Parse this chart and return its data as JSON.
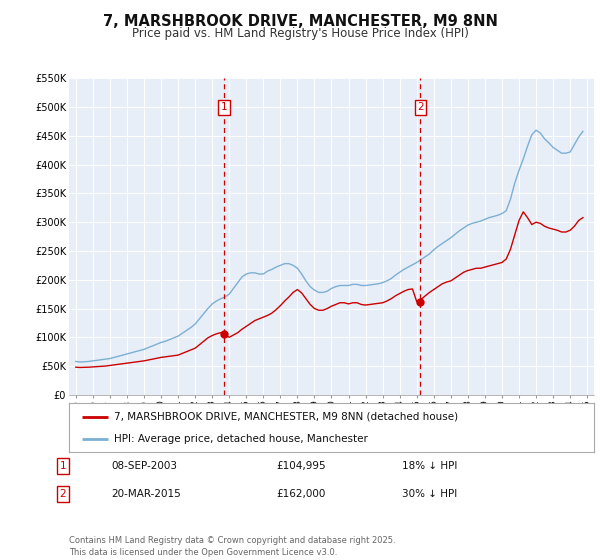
{
  "title": "7, MARSHBROOK DRIVE, MANCHESTER, M9 8NN",
  "subtitle": "Price paid vs. HM Land Registry's House Price Index (HPI)",
  "title_fontsize": 10.5,
  "subtitle_fontsize": 8.5,
  "background_color": "#ffffff",
  "plot_bg_color": "#e8eef8",
  "grid_color": "#ffffff",
  "ylim": [
    0,
    550000
  ],
  "yticks": [
    0,
    50000,
    100000,
    150000,
    200000,
    250000,
    300000,
    350000,
    400000,
    450000,
    500000,
    550000
  ],
  "ytick_labels": [
    "£0",
    "£50K",
    "£100K",
    "£150K",
    "£200K",
    "£250K",
    "£300K",
    "£350K",
    "£400K",
    "£450K",
    "£500K",
    "£550K"
  ],
  "xlim_start": 1994.6,
  "xlim_end": 2025.4,
  "xticks": [
    1995,
    1996,
    1997,
    1998,
    1999,
    2000,
    2001,
    2002,
    2003,
    2004,
    2005,
    2006,
    2007,
    2008,
    2009,
    2010,
    2011,
    2012,
    2013,
    2014,
    2015,
    2016,
    2017,
    2018,
    2019,
    2020,
    2021,
    2022,
    2023,
    2024,
    2025
  ],
  "red_line_color": "#cc0000",
  "blue_line_color": "#7bafd4",
  "vline1_x": 2003.69,
  "vline2_x": 2015.22,
  "vline_color": "#cc0000",
  "marker1_x": 2003.69,
  "marker1_y": 104995,
  "marker2_x": 2015.22,
  "marker2_y": 162000,
  "legend_label_red": "7, MARSHBROOK DRIVE, MANCHESTER, M9 8NN (detached house)",
  "legend_label_blue": "HPI: Average price, detached house, Manchester",
  "table_row1": [
    "1",
    "08-SEP-2003",
    "£104,995",
    "18% ↓ HPI"
  ],
  "table_row2": [
    "2",
    "20-MAR-2015",
    "£162,000",
    "30% ↓ HPI"
  ],
  "footer": "Contains HM Land Registry data © Crown copyright and database right 2025.\nThis data is licensed under the Open Government Licence v3.0.",
  "hpi_years": [
    1995.0,
    1995.25,
    1995.5,
    1995.75,
    1996.0,
    1996.25,
    1996.5,
    1996.75,
    1997.0,
    1997.25,
    1997.5,
    1997.75,
    1998.0,
    1998.25,
    1998.5,
    1998.75,
    1999.0,
    1999.25,
    1999.5,
    1999.75,
    2000.0,
    2000.25,
    2000.5,
    2000.75,
    2001.0,
    2001.25,
    2001.5,
    2001.75,
    2002.0,
    2002.25,
    2002.5,
    2002.75,
    2003.0,
    2003.25,
    2003.5,
    2003.75,
    2004.0,
    2004.25,
    2004.5,
    2004.75,
    2005.0,
    2005.25,
    2005.5,
    2005.75,
    2006.0,
    2006.25,
    2006.5,
    2006.75,
    2007.0,
    2007.25,
    2007.5,
    2007.75,
    2008.0,
    2008.25,
    2008.5,
    2008.75,
    2009.0,
    2009.25,
    2009.5,
    2009.75,
    2010.0,
    2010.25,
    2010.5,
    2010.75,
    2011.0,
    2011.25,
    2011.5,
    2011.75,
    2012.0,
    2012.25,
    2012.5,
    2012.75,
    2013.0,
    2013.25,
    2013.5,
    2013.75,
    2014.0,
    2014.25,
    2014.5,
    2014.75,
    2015.0,
    2015.25,
    2015.5,
    2015.75,
    2016.0,
    2016.25,
    2016.5,
    2016.75,
    2017.0,
    2017.25,
    2017.5,
    2017.75,
    2018.0,
    2018.25,
    2018.5,
    2018.75,
    2019.0,
    2019.25,
    2019.5,
    2019.75,
    2020.0,
    2020.25,
    2020.5,
    2020.75,
    2021.0,
    2021.25,
    2021.5,
    2021.75,
    2022.0,
    2022.25,
    2022.5,
    2022.75,
    2023.0,
    2023.25,
    2023.5,
    2023.75,
    2024.0,
    2024.25,
    2024.5,
    2024.75
  ],
  "hpi_vals": [
    58000,
    57000,
    57500,
    58000,
    59000,
    60000,
    61000,
    62000,
    63000,
    65000,
    67000,
    69000,
    71000,
    73000,
    75000,
    77000,
    79000,
    82000,
    85000,
    88000,
    91000,
    93000,
    96000,
    99000,
    102000,
    107000,
    112000,
    117000,
    123000,
    132000,
    141000,
    150000,
    158000,
    163000,
    167000,
    170000,
    175000,
    185000,
    195000,
    205000,
    210000,
    212000,
    212000,
    210000,
    210000,
    215000,
    218000,
    222000,
    225000,
    228000,
    228000,
    225000,
    220000,
    210000,
    198000,
    188000,
    182000,
    178000,
    178000,
    180000,
    185000,
    188000,
    190000,
    190000,
    190000,
    192000,
    192000,
    190000,
    190000,
    191000,
    192000,
    193000,
    195000,
    198000,
    202000,
    208000,
    213000,
    218000,
    222000,
    226000,
    230000,
    235000,
    240000,
    245000,
    252000,
    258000,
    263000,
    268000,
    273000,
    279000,
    285000,
    290000,
    295000,
    298000,
    300000,
    302000,
    305000,
    308000,
    310000,
    312000,
    315000,
    320000,
    340000,
    368000,
    390000,
    410000,
    432000,
    452000,
    460000,
    455000,
    445000,
    438000,
    430000,
    425000,
    420000,
    420000,
    422000,
    435000,
    448000,
    458000
  ],
  "red_years": [
    1995.0,
    1995.25,
    1995.5,
    1995.75,
    1996.0,
    1996.25,
    1996.5,
    1996.75,
    1997.0,
    1997.25,
    1997.5,
    1997.75,
    1998.0,
    1998.25,
    1998.5,
    1998.75,
    1999.0,
    1999.25,
    1999.5,
    1999.75,
    2000.0,
    2000.25,
    2000.5,
    2000.75,
    2001.0,
    2001.25,
    2001.5,
    2001.75,
    2002.0,
    2002.25,
    2002.5,
    2002.75,
    2003.0,
    2003.25,
    2003.5,
    2003.69,
    2004.0,
    2004.25,
    2004.5,
    2004.75,
    2005.0,
    2005.25,
    2005.5,
    2005.75,
    2006.0,
    2006.25,
    2006.5,
    2006.75,
    2007.0,
    2007.25,
    2007.5,
    2007.75,
    2008.0,
    2008.25,
    2008.5,
    2008.75,
    2009.0,
    2009.25,
    2009.5,
    2009.75,
    2010.0,
    2010.25,
    2010.5,
    2010.75,
    2011.0,
    2011.25,
    2011.5,
    2011.75,
    2012.0,
    2012.25,
    2012.5,
    2012.75,
    2013.0,
    2013.25,
    2013.5,
    2013.75,
    2014.0,
    2014.25,
    2014.5,
    2014.75,
    2015.0,
    2015.22,
    2015.5,
    2015.75,
    2016.0,
    2016.25,
    2016.5,
    2016.75,
    2017.0,
    2017.25,
    2017.5,
    2017.75,
    2018.0,
    2018.25,
    2018.5,
    2018.75,
    2019.0,
    2019.25,
    2019.5,
    2019.75,
    2020.0,
    2020.25,
    2020.5,
    2020.75,
    2021.0,
    2021.25,
    2021.5,
    2021.75,
    2022.0,
    2022.25,
    2022.5,
    2022.75,
    2023.0,
    2023.25,
    2023.5,
    2023.75,
    2024.0,
    2024.25,
    2024.5,
    2024.75
  ],
  "red_vals": [
    48000,
    47500,
    47800,
    48000,
    48500,
    49000,
    49500,
    50000,
    51000,
    52000,
    53000,
    54000,
    55000,
    56000,
    57000,
    58000,
    59000,
    60500,
    62000,
    63500,
    65000,
    66000,
    67000,
    68000,
    69000,
    72000,
    75000,
    78000,
    81000,
    87000,
    93000,
    99000,
    103000,
    106000,
    108000,
    104995,
    100000,
    104000,
    108000,
    114000,
    119000,
    124000,
    129000,
    132000,
    135000,
    138000,
    142000,
    148000,
    155000,
    163000,
    170000,
    178000,
    183000,
    177000,
    167000,
    157000,
    150000,
    147000,
    147000,
    150000,
    154000,
    157000,
    160000,
    160000,
    158000,
    160000,
    160000,
    157000,
    156000,
    157000,
    158000,
    159000,
    160000,
    163000,
    167000,
    172000,
    176000,
    180000,
    183000,
    184000,
    162000,
    165000,
    172000,
    178000,
    183000,
    188000,
    193000,
    196000,
    198000,
    203000,
    208000,
    213000,
    216000,
    218000,
    220000,
    220000,
    222000,
    224000,
    226000,
    228000,
    230000,
    236000,
    253000,
    278000,
    303000,
    318000,
    308000,
    296000,
    300000,
    298000,
    293000,
    290000,
    288000,
    286000,
    283000,
    283000,
    286000,
    293000,
    303000,
    308000
  ]
}
